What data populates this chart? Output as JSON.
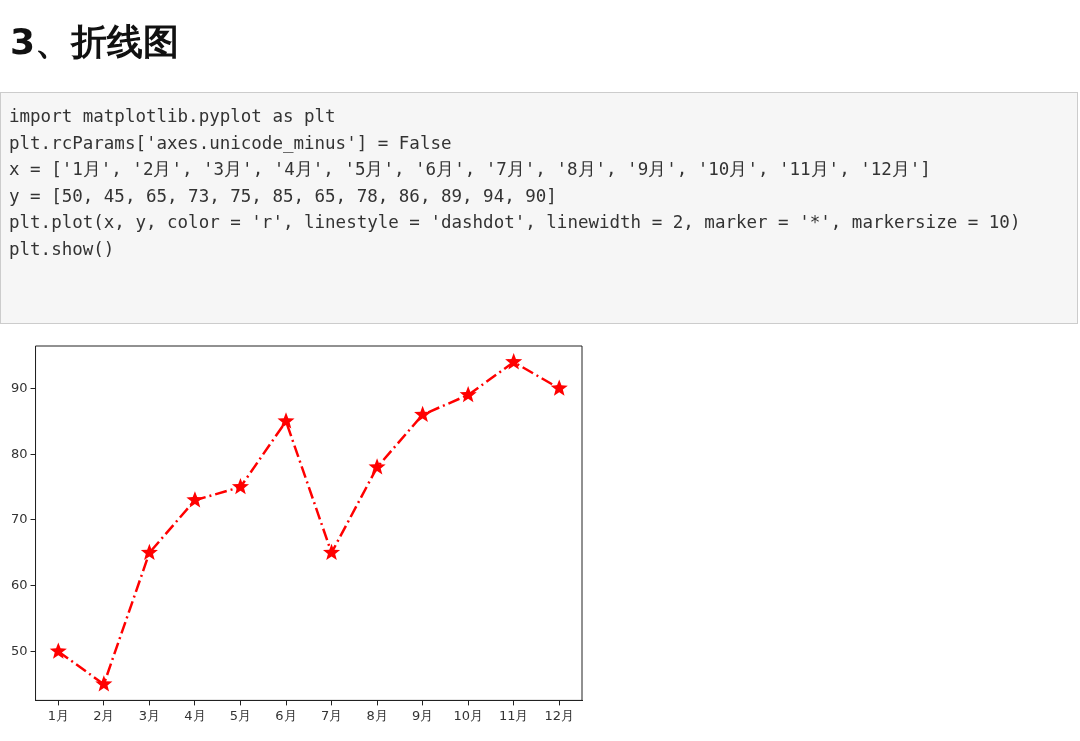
{
  "chart_data": {
    "type": "line",
    "title": "3、折线图",
    "annotations": [
      "import matplotlib.pyplot as plt",
      "plt.rcParams['axes.unicode_minus'] = False",
      "x = ['1月', '2月', '3月', '4月', '5月', '6月', '7月', '8月', '9月', '10月', '11月', '12月']",
      "y = [50, 45, 65, 73, 75, 85, 65, 78, 86, 89, 94, 90]",
      "plt.plot(x, y, color = 'r', linestyle = 'dashdot', linewidth = 2, marker = '*', markersize = 10)",
      "plt.show()"
    ],
    "categories": [
      "1月",
      "2月",
      "3月",
      "4月",
      "5月",
      "6月",
      "7月",
      "8月",
      "9月",
      "10月",
      "11月",
      "12月"
    ],
    "series": [
      {
        "color": "#ff0000",
        "values": [
          50,
          45,
          65,
          73,
          75,
          85,
          65,
          78,
          86,
          89,
          94,
          90
        ]
      }
    ],
    "ylim": [
      42.55,
      96.45
    ],
    "yticks": [
      50,
      60,
      70,
      80,
      90
    ],
    "grid": false,
    "legend": false,
    "marker": "star",
    "line_style": "dashed"
  }
}
